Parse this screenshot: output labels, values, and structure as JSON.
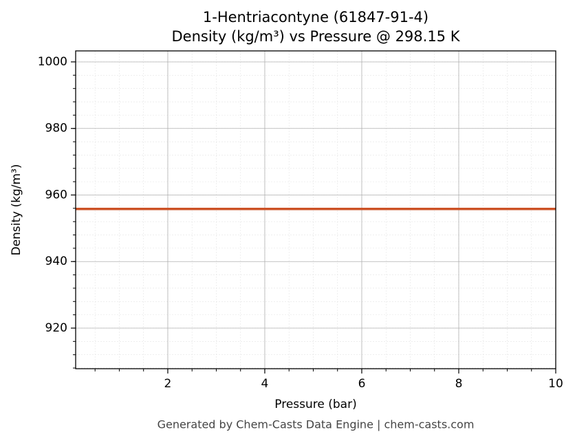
{
  "chart_data": {
    "type": "line",
    "title": "1-Hentriacontyne (61847-91-4)",
    "subtitle": "Density (kg/m³) vs Pressure @ 298.15 K",
    "x_label": "Pressure (bar)",
    "y_label": "Density (kg/m³)",
    "footer": "Generated by Chem-Casts Data Engine | chem-casts.com",
    "x": [
      0.1,
      10
    ],
    "series": [
      {
        "name": "Density",
        "color": "#cc5226",
        "values": [
          955.8,
          955.8
        ]
      }
    ],
    "xlim": [
      0.1,
      10
    ],
    "xticks": [
      2,
      4,
      6,
      8,
      10
    ],
    "ylim": [
      907.8,
      1003.3
    ],
    "yticks": [
      920,
      940,
      960,
      980,
      1000
    ],
    "grid": true,
    "minor_grid": true
  }
}
